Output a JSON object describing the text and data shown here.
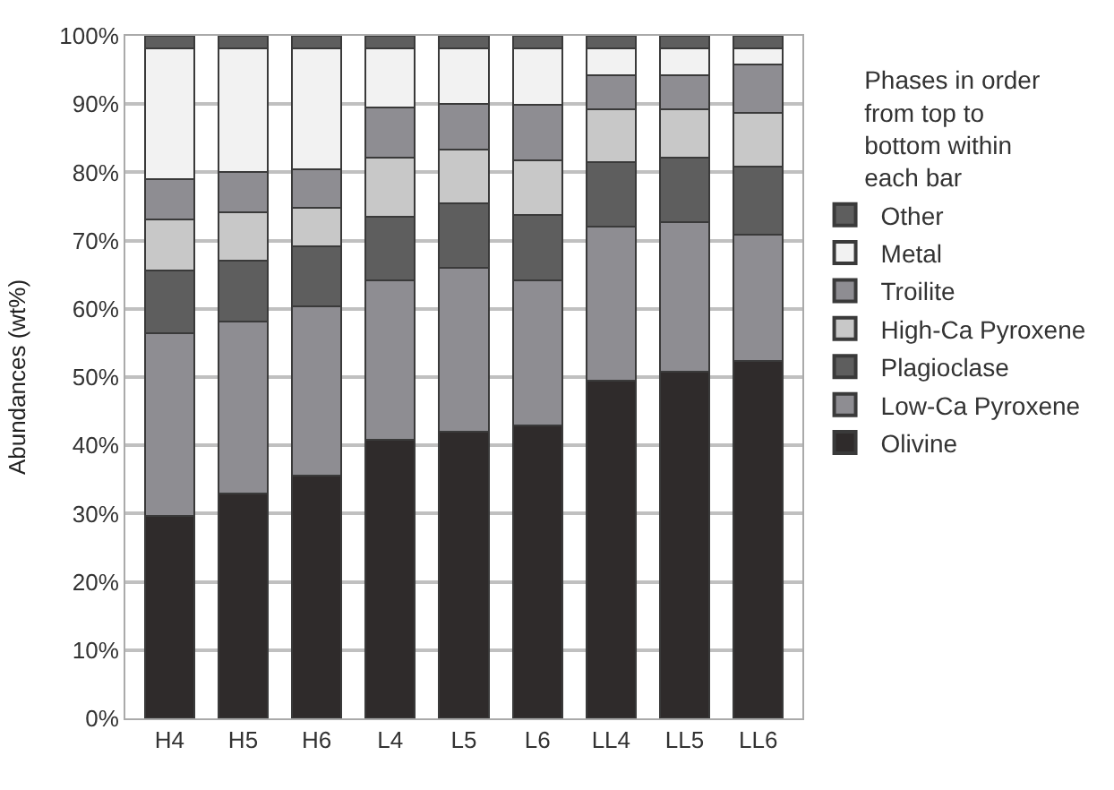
{
  "chart_data": {
    "type": "bar",
    "stacked": true,
    "ylabel": "Abundances (wt%)",
    "legend_title": "Phases in order\nfrom top to\nbottom within\neach bar",
    "legend": "right",
    "categories": [
      "H4",
      "H5",
      "H6",
      "L4",
      "L5",
      "L6",
      "LL4",
      "LL5",
      "LL6"
    ],
    "series": [
      {
        "name": "Olivine",
        "color": "#2f2b2b",
        "values": [
          29.7,
          32.9,
          35.6,
          40.8,
          42.0,
          42.9,
          49.5,
          50.8,
          52.4
        ]
      },
      {
        "name": "Low-Ca Pyroxene",
        "color": "#8e8d92",
        "values": [
          26.7,
          25.3,
          24.8,
          23.4,
          24.0,
          21.3,
          22.5,
          21.9,
          18.5
        ]
      },
      {
        "name": "Plagioclase",
        "color": "#5e5e5e",
        "values": [
          9.2,
          8.9,
          8.7,
          9.3,
          9.5,
          9.5,
          9.5,
          9.5,
          10.0
        ]
      },
      {
        "name": "High-Ca Pyroxene",
        "color": "#c8c8c8",
        "values": [
          7.5,
          7.1,
          5.7,
          8.7,
          7.8,
          8.0,
          7.8,
          7.1,
          7.8
        ]
      },
      {
        "name": "Troilite",
        "color": "#8e8d92",
        "values": [
          5.9,
          5.9,
          5.7,
          7.3,
          6.7,
          8.2,
          4.9,
          4.9,
          7.1
        ]
      },
      {
        "name": "Metal",
        "color": "#f2f2f2",
        "values": [
          19.2,
          18.1,
          17.7,
          8.7,
          8.2,
          8.3,
          4.0,
          4.0,
          2.4
        ]
      },
      {
        "name": "Other",
        "color": "#5e5e5e",
        "values": [
          1.8,
          1.8,
          1.8,
          1.8,
          1.8,
          1.8,
          1.8,
          1.8,
          1.8
        ]
      }
    ],
    "ylim": [
      0,
      100
    ],
    "yticks": [
      {
        "value": 0,
        "label": "0%"
      },
      {
        "value": 10,
        "label": "10%"
      },
      {
        "value": 20,
        "label": "20%"
      },
      {
        "value": 30,
        "label": "30%"
      },
      {
        "value": 40,
        "label": "40%"
      },
      {
        "value": 50,
        "label": "50%"
      },
      {
        "value": 60,
        "label": "60%"
      },
      {
        "value": 70,
        "label": "70%"
      },
      {
        "value": 80,
        "label": "80%"
      },
      {
        "value": 90,
        "label": "90%"
      },
      {
        "value": 100,
        "label": "100%"
      }
    ],
    "grid": "y"
  }
}
